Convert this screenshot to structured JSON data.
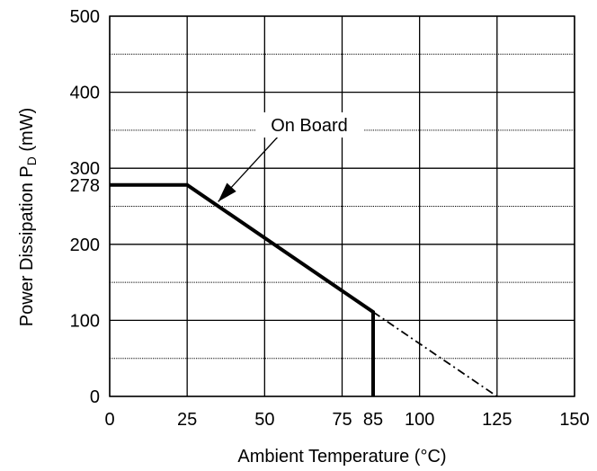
{
  "chart_data": {
    "type": "line",
    "xlabel": "Ambient Temperature (°C)",
    "ylabel_main": "Power Dissipation P",
    "ylabel_sub": "D",
    "ylabel_unit": " (mW)",
    "xlim": [
      0,
      150
    ],
    "ylim": [
      0,
      500
    ],
    "x_ticks": [
      0,
      25,
      50,
      75,
      85,
      100,
      125,
      150
    ],
    "x_tick_labels": [
      "0",
      "25",
      "50",
      "75",
      "85",
      "100",
      "125",
      "150"
    ],
    "x_grid": [
      0,
      25,
      50,
      75,
      100,
      125,
      150
    ],
    "y_ticks": [
      0,
      100,
      200,
      278,
      300,
      400,
      500
    ],
    "y_tick_labels": [
      "0",
      "100",
      "200",
      "278",
      "300",
      "400",
      "500"
    ],
    "y_major_grid": [
      0,
      100,
      200,
      300,
      400,
      500
    ],
    "y_minor_grid": [
      50,
      150,
      250,
      350,
      450
    ],
    "grid": true,
    "series": [
      {
        "name": "On Board",
        "style": "solid-bold",
        "color": "#000000",
        "x": [
          0,
          25,
          85,
          85
        ],
        "y": [
          278,
          278,
          111,
          0
        ]
      },
      {
        "name": "",
        "style": "dash-dot",
        "color": "#000000",
        "x": [
          85,
          125
        ],
        "y": [
          111,
          0
        ]
      }
    ],
    "annotations": [
      {
        "text": "On Board",
        "arrow_to": [
          35,
          256
        ]
      }
    ]
  }
}
